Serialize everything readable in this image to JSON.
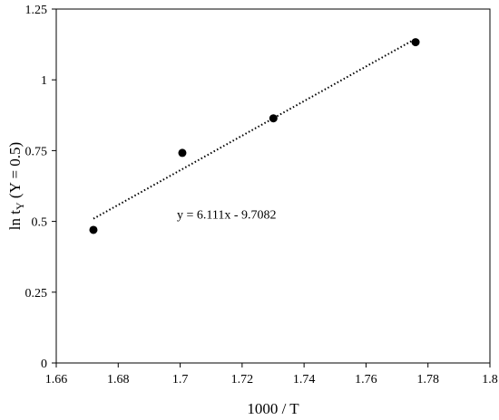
{
  "chart_data": {
    "type": "scatter",
    "title": "",
    "xlabel": "1000 / T",
    "ylabel_main": "ln t",
    "ylabel_sub": "Y",
    "ylabel_tail": " (Y = 0.5)",
    "xlim": [
      1.66,
      1.8
    ],
    "ylim": [
      0,
      1.25
    ],
    "xticks": [
      1.66,
      1.68,
      1.7,
      1.72,
      1.74,
      1.76,
      1.78,
      1.8
    ],
    "xtick_labels": [
      "1.66",
      "1.68",
      "1.7",
      "1.72",
      "1.74",
      "1.76",
      "1.78",
      "1.8"
    ],
    "yticks": [
      0,
      0.25,
      0.5,
      0.75,
      1,
      1.25
    ],
    "ytick_labels": [
      "0",
      "0.25",
      "0.5",
      "0.75",
      "1",
      "1.25"
    ],
    "points": [
      {
        "x": 1.672,
        "y": 0.47
      },
      {
        "x": 1.7007,
        "y": 0.742
      },
      {
        "x": 1.7301,
        "y": 0.864
      },
      {
        "x": 1.776,
        "y": 1.133
      }
    ],
    "trendline": {
      "slope": 6.111,
      "intercept": -9.7082,
      "x_range": [
        1.672,
        1.776
      ],
      "style": "dotted"
    },
    "equation_label": "y = 6.111x - 9.7082",
    "equation_pos": {
      "x": 1.715,
      "y": 0.51
    },
    "grid": false,
    "marker_color": "#000000"
  }
}
